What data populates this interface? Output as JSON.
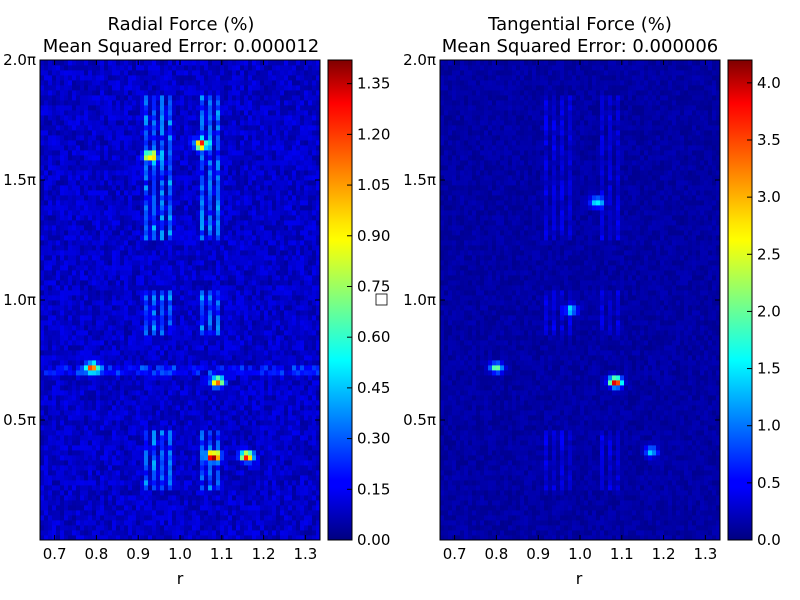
{
  "chart_data": [
    {
      "type": "heatmap",
      "title_line1": "Radial Force (%)",
      "title_line2": "Mean Squared Error: 0.000012",
      "xlabel": "r",
      "ylabel": "",
      "xlim": [
        0.665,
        1.335
      ],
      "ylim": [
        0.0,
        2.0
      ],
      "xticks": [
        0.7,
        0.8,
        0.9,
        1.0,
        1.1,
        1.2,
        1.3
      ],
      "xtick_labels": [
        "0.7",
        "0.8",
        "0.9",
        "1.0",
        "1.1",
        "1.2",
        "1.3"
      ],
      "yticks": [
        0.5,
        1.0,
        1.5,
        2.0
      ],
      "ytick_labels": [
        "0.5π",
        "1.0π",
        "1.5π",
        "2.0π"
      ],
      "colorbar": {
        "range": [
          0.0,
          1.42
        ],
        "ticks": [
          0.0,
          0.15,
          0.3,
          0.45,
          0.6,
          0.75,
          0.9,
          1.05,
          1.2,
          1.35
        ],
        "tick_labels": [
          "0.00",
          "0.15",
          "0.30",
          "0.45",
          "0.60",
          "0.75",
          "0.90",
          "1.05",
          "1.20",
          "1.35"
        ],
        "colormap": "jet"
      },
      "hotspots": [
        {
          "r": 1.08,
          "theta": 0.35,
          "value": 1.35
        },
        {
          "r": 1.16,
          "theta": 0.35,
          "value": 1.2
        },
        {
          "r": 0.79,
          "theta": 0.72,
          "value": 1.0
        },
        {
          "r": 1.09,
          "theta": 0.66,
          "value": 1.05
        },
        {
          "r": 1.05,
          "theta": 1.65,
          "value": 1.1
        },
        {
          "r": 0.93,
          "theta": 1.6,
          "value": 0.9
        }
      ]
    },
    {
      "type": "heatmap",
      "title_line1": "Tangential Force (%)",
      "title_line2": "Mean Squared Error: 0.000006",
      "xlabel": "r",
      "ylabel": "",
      "xlim": [
        0.665,
        1.335
      ],
      "ylim": [
        0.0,
        2.0
      ],
      "xticks": [
        0.7,
        0.8,
        0.9,
        1.0,
        1.1,
        1.2,
        1.3
      ],
      "xtick_labels": [
        "0.7",
        "0.8",
        "0.9",
        "1.0",
        "1.1",
        "1.2",
        "1.3"
      ],
      "yticks": [
        0.5,
        1.0,
        1.5,
        2.0
      ],
      "ytick_labels": [
        "0.5π",
        "1.0π",
        "1.5π",
        "2.0π"
      ],
      "colorbar": {
        "range": [
          0.0,
          4.2
        ],
        "ticks": [
          0.0,
          0.5,
          1.0,
          1.5,
          2.0,
          2.5,
          3.0,
          3.5,
          4.0
        ],
        "tick_labels": [
          "0.0",
          "0.5",
          "1.0",
          "1.5",
          "2.0",
          "2.5",
          "3.0",
          "3.5",
          "4.0"
        ],
        "colormap": "jet"
      },
      "hotspots": [
        {
          "r": 1.085,
          "theta": 0.66,
          "value": 4.0
        },
        {
          "r": 0.8,
          "theta": 0.72,
          "value": 2.0
        },
        {
          "r": 1.04,
          "theta": 1.41,
          "value": 1.5
        },
        {
          "r": 0.98,
          "theta": 0.96,
          "value": 1.2
        },
        {
          "r": 1.17,
          "theta": 0.37,
          "value": 1.3
        }
      ]
    }
  ]
}
